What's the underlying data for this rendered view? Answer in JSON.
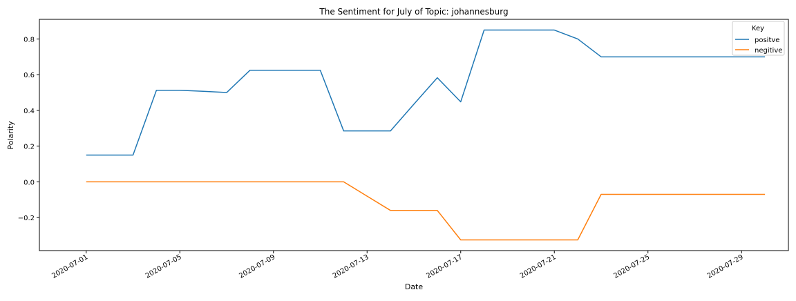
{
  "chart_data": {
    "type": "line",
    "title": "The Sentiment for July of Topic: johannesburg",
    "xlabel": "Date",
    "ylabel": "Polarity",
    "x_type": "date",
    "xlim": [
      "2020-06-29",
      "2020-07-31"
    ],
    "ylim": [
      -0.385,
      0.91
    ],
    "x_ticks": [
      "2020-07-01",
      "2020-07-05",
      "2020-07-09",
      "2020-07-13",
      "2020-07-17",
      "2020-07-21",
      "2020-07-25",
      "2020-07-29"
    ],
    "y_ticks": [
      0.8,
      0.6,
      0.4,
      0.2,
      0.0,
      -0.2
    ],
    "y_tick_labels": [
      "0.8",
      "0.6",
      "0.4",
      "0.2",
      "0.0",
      "−0.2"
    ],
    "grid": false,
    "legend": {
      "title": "Key",
      "position": "top-right"
    },
    "x": [
      "2020-07-01",
      "2020-07-02",
      "2020-07-03",
      "2020-07-04",
      "2020-07-05",
      "2020-07-06",
      "2020-07-07",
      "2020-07-08",
      "2020-07-09",
      "2020-07-10",
      "2020-07-11",
      "2020-07-12",
      "2020-07-13",
      "2020-07-14",
      "2020-07-15",
      "2020-07-16",
      "2020-07-17",
      "2020-07-18",
      "2020-07-19",
      "2020-07-20",
      "2020-07-21",
      "2020-07-22",
      "2020-07-23",
      "2020-07-24",
      "2020-07-25",
      "2020-07-26",
      "2020-07-27",
      "2020-07-28",
      "2020-07-29",
      "2020-07-30"
    ],
    "series": [
      {
        "name": "positve",
        "color": "#1f77b4",
        "values": [
          0.15,
          0.15,
          0.15,
          0.513,
          0.513,
          0.507,
          0.5,
          0.625,
          0.625,
          0.625,
          0.625,
          0.285,
          0.285,
          0.285,
          0.435,
          0.583,
          0.448,
          0.85,
          0.85,
          0.85,
          0.85,
          0.8,
          0.7,
          0.7,
          0.7,
          0.7,
          0.7,
          0.7,
          0.7,
          0.7
        ]
      },
      {
        "name": "negitive",
        "color": "#ff7f0e",
        "values": [
          0,
          0,
          0,
          0,
          0,
          0,
          0,
          0,
          0,
          0,
          0,
          0,
          -0.08,
          -0.16,
          -0.16,
          -0.16,
          -0.325,
          -0.325,
          -0.325,
          -0.325,
          -0.325,
          -0.325,
          -0.07,
          -0.07,
          -0.07,
          -0.07,
          -0.07,
          -0.07,
          -0.07,
          -0.07
        ]
      }
    ]
  }
}
